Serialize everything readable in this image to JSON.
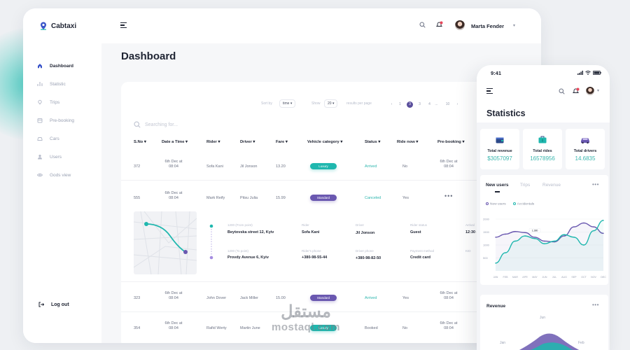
{
  "app": {
    "name": "Cabtaxi",
    "accent": "#1fb7ae",
    "brand_purple": "#6a58b0"
  },
  "sidebar": {
    "items": [
      {
        "label": "Dashboard",
        "icon": "home-icon"
      },
      {
        "label": "Statistic",
        "icon": "chart-icon"
      },
      {
        "label": "Trips",
        "icon": "pin-icon"
      },
      {
        "label": "Pre-booking",
        "icon": "calendar-icon"
      },
      {
        "label": "Cars",
        "icon": "car-icon"
      },
      {
        "label": "Users",
        "icon": "user-icon"
      },
      {
        "label": "Gods view",
        "icon": "eye-icon"
      }
    ],
    "logout": "Log out"
  },
  "header": {
    "user_name": "Marta Fender"
  },
  "page": {
    "title": "Dashboard"
  },
  "table": {
    "sort_label": "Sort by",
    "sort_value": "time",
    "show_label": "Show",
    "show_value": "20",
    "per_page_label": "results per page",
    "pages": [
      "1",
      "2",
      "3",
      "4",
      "...",
      "10"
    ],
    "current_page": "3",
    "search_placeholder": "Searching for...",
    "columns": [
      "S.No",
      "Date a Time",
      "Rider",
      "Driver",
      "Fare",
      "Vehicle category",
      "Status",
      "Ride now",
      "Pre-booking"
    ],
    "rows": [
      {
        "sno": "372",
        "date": "6th Dec at",
        "time": "08:04",
        "rider": "Sofa Kani",
        "driver": "Jil Jonson",
        "fare": "13.20",
        "category": "Luxury",
        "status": "Arrived",
        "ride_now": "No",
        "pre_date": "6th Dec at",
        "pre_time": "08:04"
      },
      {
        "sno": "555",
        "date": "6th Dec at",
        "time": "08:04",
        "rider": "Mark Reify",
        "driver": "Pitsu Julia",
        "fare": "15.99",
        "category": "Standard",
        "status": "Canceled",
        "ride_now": "Yes",
        "pre_date": "",
        "pre_time": ""
      },
      {
        "sno": "323",
        "date": "6th Dec at",
        "time": "08:04",
        "rider": "John Dover",
        "driver": "Jack Miller",
        "fare": "15.00",
        "category": "Standard",
        "status": "Arrived",
        "ride_now": "Yes",
        "pre_date": "6th Dec at",
        "pre_time": "08:04"
      },
      {
        "sno": "354",
        "date": "6th Dec at",
        "time": "08:04",
        "rider": "Rafid Werty",
        "driver": "Martin June",
        "fare": "",
        "category": "Luxury",
        "status": "Booked",
        "ride_now": "No",
        "pre_date": "6th Dec at",
        "pre_time": "08:04"
      }
    ],
    "row_menu": "•••",
    "detail": {
      "from_label": "1200 (From point)",
      "from_value": "Beytovska street 12, Kyiv",
      "to_label": "1200 (To point)",
      "to_value": "Provdy Avenue 6, Kyiv",
      "rider_label": "Rider",
      "rider_value": "Sofa Kani",
      "rider_phone_label": "Rider's phone",
      "rider_phone_value": "+380-98-55-44",
      "driver_label": "Driver",
      "driver_value": "Jil Jonson",
      "driver_phone_label": "Driver phone",
      "driver_phone_value": "+380-98-82-50",
      "rider_status_label": "Rider status",
      "rider_status_value": "Guest",
      "payment_label": "Payment method",
      "payment_value": "Credit card",
      "extra_label_1": "Arrival",
      "extra_value_1": "12:30 d",
      "extra_label_2": "KID"
    }
  },
  "mobile": {
    "time": "9:41",
    "title": "Statistics",
    "cards": [
      {
        "label": "Total revenue",
        "value": "$3057097",
        "icon": "wallet-icon",
        "color": "#2d4a8a"
      },
      {
        "label": "Total rides",
        "value": "16578956",
        "icon": "briefcase-icon",
        "color": "#1fb7ae"
      },
      {
        "label": "Total drivers",
        "value": "14.6835",
        "icon": "car-icon",
        "color": "#6a58b0"
      }
    ],
    "chart_tabs": [
      "New users",
      "Trips",
      "Revenue"
    ],
    "legend": [
      {
        "name": "New users",
        "color": "#6a58b0"
      },
      {
        "name": "Accidentals",
        "color": "#1fb7ae"
      }
    ],
    "chart_tooltip": "1,380",
    "revenue_title": "Revenue",
    "revenue_labels": [
      "Jan",
      "Jun",
      "Feb"
    ]
  },
  "chart_data": {
    "type": "line",
    "x": [
      "JAN",
      "FEB",
      "MAR",
      "APR",
      "MAY",
      "JUN",
      "JUL",
      "AUG",
      "SEP",
      "OCT",
      "NOV",
      "DEC"
    ],
    "yticks": [
      500,
      1000,
      1500,
      2000
    ],
    "ylim": [
      0,
      2000
    ],
    "series": [
      {
        "name": "New users",
        "color": "#6a58b0",
        "values": [
          1300,
          1420,
          1520,
          1480,
          1300,
          1150,
          1120,
          1350,
          1700,
          1850,
          1700,
          1450
        ]
      },
      {
        "name": "Accidentals",
        "color": "#1fb7ae",
        "values": [
          300,
          700,
          1150,
          1350,
          1250,
          1050,
          1150,
          1400,
          1300,
          1000,
          1550,
          1950
        ]
      }
    ]
  },
  "watermark": {
    "arabic": "مستقل",
    "latin": "mostaql.com"
  }
}
